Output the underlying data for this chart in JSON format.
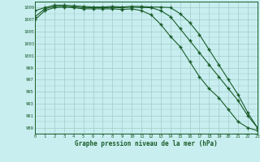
{
  "title": "Graphe pression niveau de la mer (hPa)",
  "background_color": "#c8eef0",
  "grid_color": "#a0ccc8",
  "line_color": "#1a5c28",
  "x_min": 0,
  "x_max": 23,
  "y_min": 988,
  "y_max": 1010,
  "ytick_step": 2,
  "hours": [
    0,
    1,
    2,
    3,
    4,
    5,
    6,
    7,
    8,
    9,
    10,
    11,
    12,
    13,
    14,
    15,
    16,
    17,
    18,
    19,
    20,
    21,
    22,
    23
  ],
  "series1": [
    1007.5,
    1008.8,
    1009.2,
    1009.2,
    1009.1,
    1009.0,
    1009.0,
    1009.0,
    1009.0,
    1009.0,
    1009.1,
    1009.0,
    1009.0,
    1008.5,
    1007.5,
    1005.5,
    1003.5,
    1001.5,
    999.5,
    997.5,
    995.5,
    993.5,
    991.0,
    989.0
  ],
  "series2": [
    1008.5,
    1009.0,
    1009.4,
    1009.4,
    1009.3,
    1009.2,
    1009.1,
    1009.1,
    1009.2,
    1009.1,
    1009.2,
    1009.2,
    1009.1,
    1009.1,
    1009.0,
    1008.0,
    1006.5,
    1004.5,
    1002.0,
    999.5,
    997.0,
    994.5,
    991.5,
    989.0
  ],
  "series3": [
    1007.0,
    1008.5,
    1009.0,
    1009.1,
    1009.0,
    1008.8,
    1008.8,
    1008.8,
    1008.8,
    1008.7,
    1008.8,
    1008.5,
    1007.8,
    1006.2,
    1004.2,
    1002.5,
    1000.0,
    997.5,
    995.5,
    994.0,
    992.0,
    990.0,
    989.0,
    988.5
  ]
}
